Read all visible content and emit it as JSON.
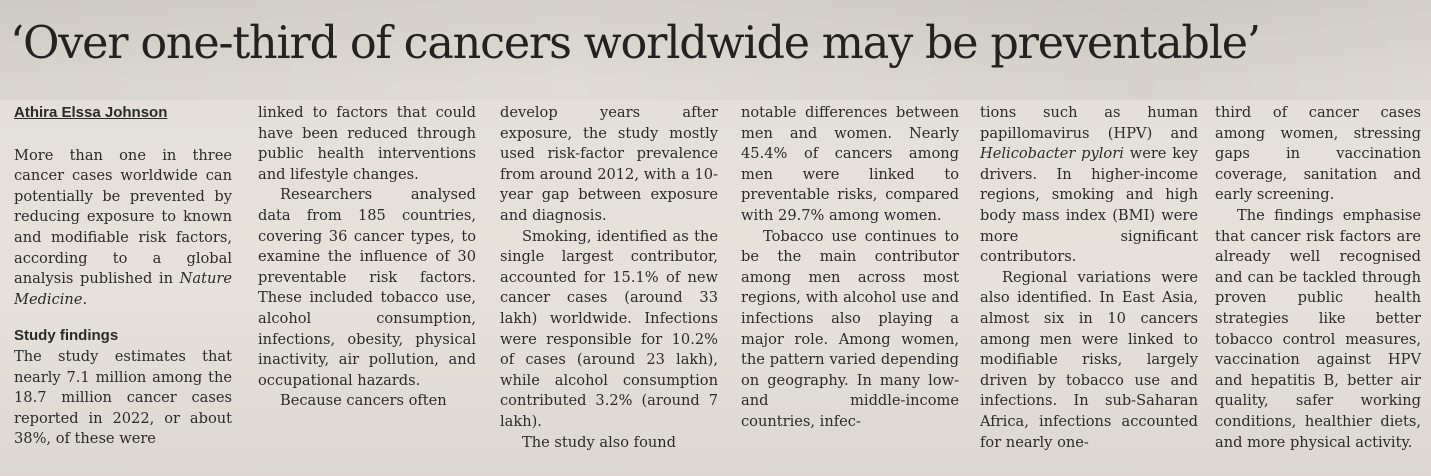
{
  "headline": "‘Over one-third of cancers worldwide may be preventable’",
  "byline": "Athira Elssa Johnson",
  "col1": {
    "para1_start": "More than one in three cancer cases worldwide can potentially be prevented by reducing exposure to known and modifiable risk factors, according to a global analysis published in ",
    "journal": "Nature Medicine",
    "para1_end": ".",
    "subhead": "Study findings",
    "para2": "The study estimates that nearly 7.1 million among the 18.7 million cancer cases reported in 2022, or about 38%, of these were"
  },
  "col2": {
    "para1": "linked to factors that could have been reduced through public health interventions and lifestyle changes.",
    "para2": "Researchers analysed data from 185 countries, covering 36 cancer types, to examine the influence of 30 preventable risk factors. These included tobacco use, alcohol consumption, infections, obesity, physical inactivity, air pollution, and occupational hazards.",
    "para3": "Because cancers often"
  },
  "col3": {
    "para1": "develop years after exposure, the study mostly used risk-factor prevalence from around 2012, with a 10-year gap between exposure and diagnosis.",
    "para2": "Smoking, identified as the single largest contributor, accounted for 15.1% of new cancer cases (around 33 lakh) worldwide. Infections were responsible for 10.2% of cases (around 23 lakh), while alcohol consumption contributed 3.2% (around 7 lakh).",
    "para3": "The study also found"
  },
  "col4": {
    "para1": "notable differences between men and women. Nearly 45.4% of cancers among men were linked to preventable risks, compared with 29.7% among women.",
    "para2": "Tobacco use continues to be the main contributor among men across most regions, with alcohol use and infections also playing a major role. Among women, the pattern varied depending on geography. In many low- and middle-income countries, infec-"
  },
  "col5": {
    "para1_start": "tions such as human papillomavirus (HPV) and ",
    "bacterium": "Helicobacter pylori",
    "para1_end": " were key drivers. In higher-income regions, smoking and high body mass index (BMI) were more significant contributors.",
    "para2": "Regional variations were also identified. In East Asia, almost six in 10 cancers among men were linked to modifiable risks, largely driven by tobacco use and infections. In sub-Saharan Africa, infections accounted for nearly one-"
  },
  "col6": {
    "para1": "third of cancer cases among women, stressing gaps in vaccination coverage, sanitation and early screening.",
    "para2": "The findings emphasise that cancer risk factors are already well recognised and can be tackled through proven public health strategies like better tobacco control measures, vaccination against HPV and hepatitis B, better air quality, safer working conditions, healthier diets, and more physical activity."
  }
}
